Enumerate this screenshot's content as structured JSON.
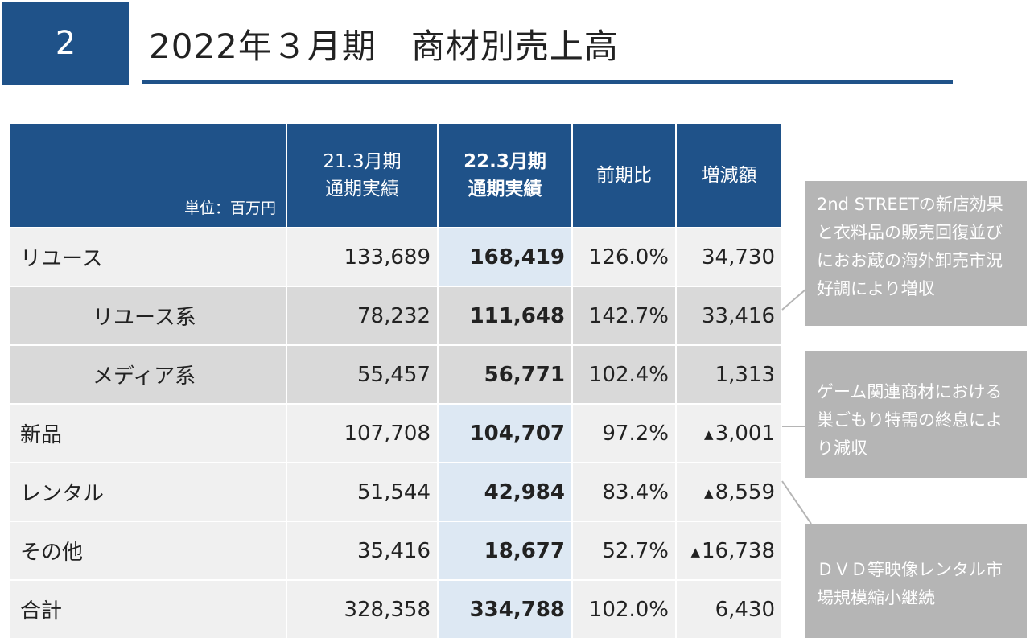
{
  "header": {
    "section_number": "2",
    "title": "2022年３月期　商材別売上高"
  },
  "table": {
    "unit_label": "単位：百万円",
    "columns": [
      {
        "line1": "21.3月期",
        "line2": "通期実績"
      },
      {
        "line1": "22.3月期",
        "line2": "通期実績"
      },
      {
        "line1": "前期比",
        "line2": ""
      },
      {
        "line1": "増減額",
        "line2": ""
      }
    ],
    "rows": [
      {
        "label": "リユース",
        "prev": "133,689",
        "curr": "168,419",
        "ratio": "126.0%",
        "diff_mark": "",
        "diff": "34,730"
      },
      {
        "label": "リユース系",
        "prev": "78,232",
        "curr": "111,648",
        "ratio": "142.7%",
        "diff_mark": "",
        "diff": "33,416"
      },
      {
        "label": "メディア系",
        "prev": "55,457",
        "curr": "56,771",
        "ratio": "102.4%",
        "diff_mark": "",
        "diff": "1,313"
      },
      {
        "label": "新品",
        "prev": "107,708",
        "curr": "104,707",
        "ratio": "97.2%",
        "diff_mark": "▲",
        "diff": "3,001"
      },
      {
        "label": "レンタル",
        "prev": "51,544",
        "curr": "42,984",
        "ratio": "83.4%",
        "diff_mark": "▲",
        "diff": "8,559"
      },
      {
        "label": "その他",
        "prev": "35,416",
        "curr": "18,677",
        "ratio": "52.7%",
        "diff_mark": "▲",
        "diff": "16,738"
      },
      {
        "label": "合計",
        "prev": "328,358",
        "curr": "334,788",
        "ratio": "102.0%",
        "diff_mark": "",
        "diff": "6,430"
      }
    ]
  },
  "notes": [
    "2nd STREETの新店効果と衣料品の販売回復並びにおお蔵の海外卸売市況好調により増収",
    "ゲーム関連商材における巣ごもり特需の終息により減収",
    "ＤＶＤ等映像レンタル市場規模縮小継続"
  ],
  "colors": {
    "brand": "#1f5289",
    "highlight": "#dde8f3",
    "note_bg": "#b5b5b5"
  }
}
